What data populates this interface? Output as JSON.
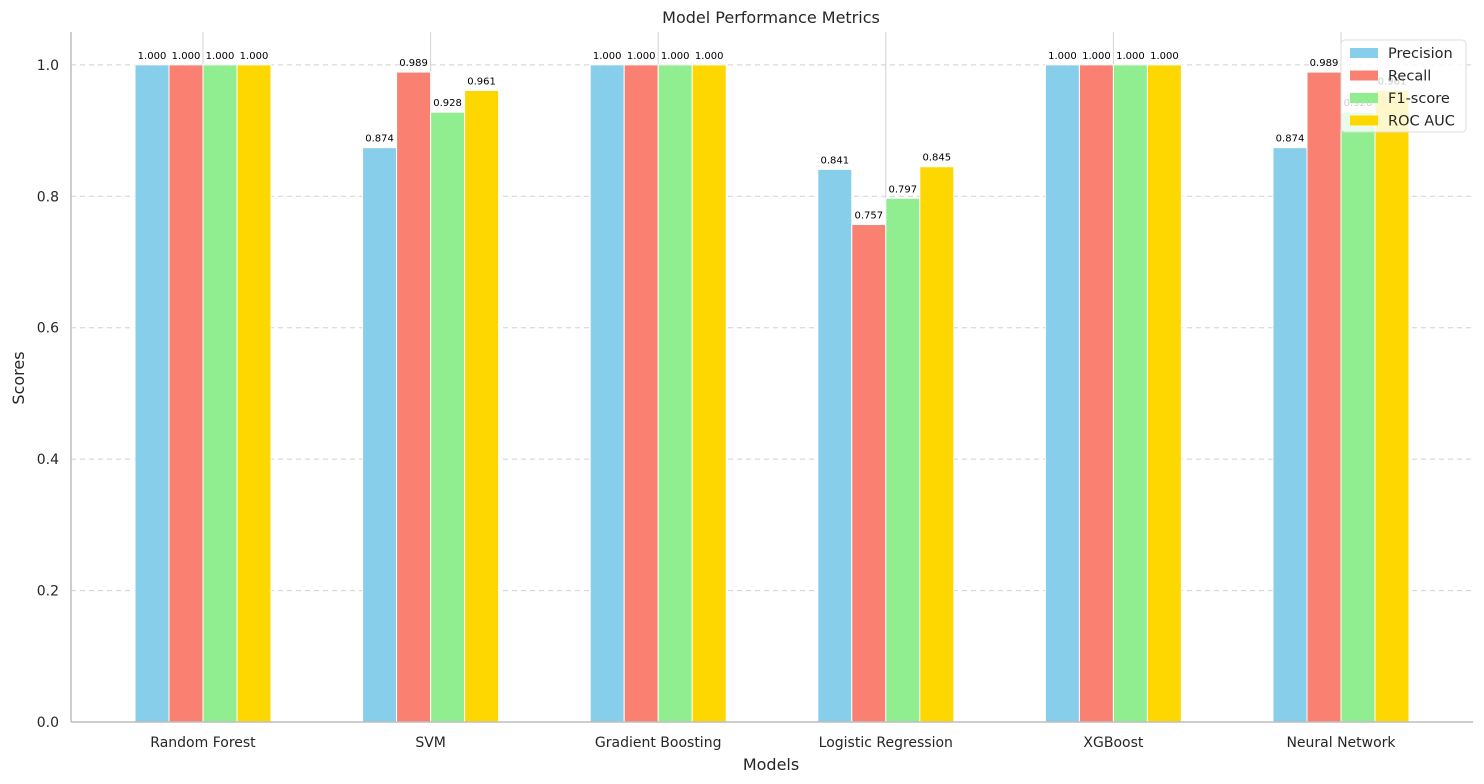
{
  "chart_data": {
    "type": "bar",
    "title": "Model Performance Metrics",
    "xlabel": "Models",
    "ylabel": "Scores",
    "categories": [
      "Random Forest",
      "SVM",
      "Gradient Boosting",
      "Logistic Regression",
      "XGBoost",
      "Neural Network"
    ],
    "series": [
      {
        "name": "Precision",
        "color": "#87CEEB",
        "values": [
          1.0,
          0.874,
          1.0,
          0.841,
          1.0,
          0.874
        ]
      },
      {
        "name": "Recall",
        "color": "#FA8072",
        "values": [
          1.0,
          0.989,
          1.0,
          0.757,
          1.0,
          0.989
        ]
      },
      {
        "name": "F1-score",
        "color": "#90EE90",
        "values": [
          1.0,
          0.928,
          1.0,
          0.797,
          1.0,
          0.928
        ]
      },
      {
        "name": "ROC AUC",
        "color": "#FFD700",
        "values": [
          1.0,
          0.961,
          1.0,
          0.845,
          1.0,
          0.961
        ]
      }
    ],
    "ylim": [
      0,
      1.05
    ],
    "yticks": [
      "0.0",
      "0.2",
      "0.4",
      "0.6",
      "0.8",
      "1.0"
    ],
    "grid": true,
    "legend_position": "top-right",
    "data_label_format": "3 decimals"
  }
}
